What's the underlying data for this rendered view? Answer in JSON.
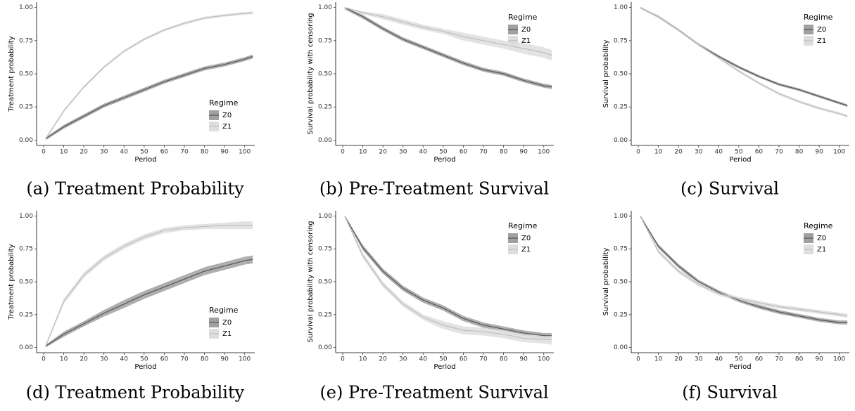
{
  "chart_data": [
    {
      "type": "line",
      "caption": "(a) Treatment Probability",
      "ylabel": "Treatment probability",
      "xlabel": "Period",
      "legend_title": "Regime",
      "legend": "right-bottom",
      "x": [
        1,
        10,
        20,
        30,
        40,
        50,
        60,
        70,
        80,
        90,
        100,
        104
      ],
      "xlim": [
        -3.5,
        105
      ],
      "ylim": [
        -0.04,
        1.04
      ],
      "xticks": [
        0,
        10,
        20,
        30,
        40,
        50,
        60,
        70,
        80,
        90,
        100
      ],
      "yticks": [
        {
          "value": 0,
          "label": "0.00"
        },
        {
          "value": 0.25,
          "label": "0.25"
        },
        {
          "value": 0.5,
          "label": "0.50"
        },
        {
          "value": 0.75,
          "label": "0.75"
        },
        {
          "value": 1,
          "label": "1.00"
        }
      ],
      "series": [
        {
          "name": "Z0",
          "color": "#555555",
          "band_color": "#a0a0a0",
          "values": [
            0.01,
            0.1,
            0.18,
            0.26,
            0.32,
            0.38,
            0.44,
            0.49,
            0.54,
            0.57,
            0.61,
            0.63
          ],
          "lower": [
            0.0,
            0.085,
            0.165,
            0.245,
            0.305,
            0.365,
            0.425,
            0.475,
            0.525,
            0.555,
            0.595,
            0.615
          ],
          "upper": [
            0.02,
            0.115,
            0.195,
            0.275,
            0.335,
            0.395,
            0.455,
            0.505,
            0.555,
            0.585,
            0.625,
            0.645
          ]
        },
        {
          "name": "Z1",
          "color": "#bdbdbd",
          "band_color": "#dedede",
          "values": [
            0.01,
            0.22,
            0.4,
            0.55,
            0.67,
            0.76,
            0.83,
            0.88,
            0.92,
            0.94,
            0.955,
            0.96
          ],
          "lower": [
            0.0,
            0.21,
            0.39,
            0.54,
            0.66,
            0.75,
            0.82,
            0.87,
            0.91,
            0.93,
            0.945,
            0.95
          ],
          "upper": [
            0.02,
            0.23,
            0.41,
            0.56,
            0.68,
            0.77,
            0.84,
            0.89,
            0.93,
            0.95,
            0.965,
            0.97
          ]
        }
      ]
    },
    {
      "type": "line",
      "caption": "(b) Pre-Treatment Survival",
      "ylabel": "Survival probability with censoring",
      "xlabel": "Period",
      "legend_title": "Regime",
      "legend": "right-top",
      "x": [
        1,
        10,
        20,
        30,
        40,
        50,
        60,
        70,
        80,
        90,
        100,
        104
      ],
      "xlim": [
        -3.5,
        105
      ],
      "ylim": [
        -0.04,
        1.04
      ],
      "xticks": [
        0,
        10,
        20,
        30,
        40,
        50,
        60,
        70,
        80,
        90,
        100
      ],
      "yticks": [
        {
          "value": 0,
          "label": "0.00"
        },
        {
          "value": 0.25,
          "label": "0.25"
        },
        {
          "value": 0.5,
          "label": "0.50"
        },
        {
          "value": 0.75,
          "label": "0.75"
        },
        {
          "value": 1,
          "label": "1.00"
        }
      ],
      "series": [
        {
          "name": "Z0",
          "color": "#555555",
          "band_color": "#a0a0a0",
          "values": [
            1,
            0.93,
            0.84,
            0.76,
            0.7,
            0.64,
            0.58,
            0.53,
            0.5,
            0.45,
            0.41,
            0.4
          ],
          "lower": [
            0.985,
            0.915,
            0.825,
            0.745,
            0.685,
            0.625,
            0.565,
            0.515,
            0.485,
            0.435,
            0.395,
            0.385
          ],
          "upper": [
            1,
            0.945,
            0.855,
            0.775,
            0.715,
            0.655,
            0.595,
            0.545,
            0.515,
            0.465,
            0.425,
            0.415
          ]
        },
        {
          "name": "Z1",
          "color": "#bdbdbd",
          "band_color": "#dedede",
          "values": [
            1,
            0.96,
            0.93,
            0.89,
            0.85,
            0.82,
            0.78,
            0.75,
            0.72,
            0.69,
            0.66,
            0.64
          ],
          "lower": [
            0.99,
            0.95,
            0.91,
            0.87,
            0.83,
            0.8,
            0.75,
            0.72,
            0.69,
            0.65,
            0.62,
            0.6
          ],
          "upper": [
            1,
            0.97,
            0.95,
            0.91,
            0.87,
            0.84,
            0.81,
            0.78,
            0.75,
            0.73,
            0.7,
            0.68
          ]
        }
      ]
    },
    {
      "type": "line",
      "caption": "(c) Survival",
      "ylabel": "Survival probability",
      "xlabel": "Period",
      "legend_title": "Regime",
      "legend": "right-top",
      "x": [
        1,
        10,
        20,
        30,
        40,
        50,
        60,
        70,
        80,
        90,
        100,
        104
      ],
      "xlim": [
        -3.5,
        105
      ],
      "ylim": [
        -0.04,
        1.04
      ],
      "xticks": [
        0,
        10,
        20,
        30,
        40,
        50,
        60,
        70,
        80,
        90,
        100
      ],
      "yticks": [
        {
          "value": 0,
          "label": "0.00"
        },
        {
          "value": 0.25,
          "label": "0.25"
        },
        {
          "value": 0.5,
          "label": "0.50"
        },
        {
          "value": 0.75,
          "label": "0.75"
        },
        {
          "value": 1,
          "label": "1.00"
        }
      ],
      "series": [
        {
          "name": "Z0",
          "color": "#555555",
          "band_color": "#a0a0a0",
          "values": [
            1,
            0.93,
            0.83,
            0.72,
            0.63,
            0.55,
            0.48,
            0.42,
            0.38,
            0.33,
            0.28,
            0.26
          ],
          "lower": [
            0.99,
            0.92,
            0.82,
            0.71,
            0.62,
            0.54,
            0.47,
            0.41,
            0.37,
            0.32,
            0.27,
            0.25
          ],
          "upper": [
            1,
            0.94,
            0.84,
            0.73,
            0.64,
            0.56,
            0.49,
            0.43,
            0.39,
            0.34,
            0.29,
            0.27
          ]
        },
        {
          "name": "Z1",
          "color": "#bdbdbd",
          "band_color": "#dedede",
          "values": [
            1,
            0.93,
            0.83,
            0.72,
            0.62,
            0.52,
            0.43,
            0.35,
            0.29,
            0.24,
            0.2,
            0.18
          ],
          "lower": [
            0.99,
            0.92,
            0.82,
            0.71,
            0.61,
            0.51,
            0.42,
            0.34,
            0.28,
            0.23,
            0.19,
            0.17
          ],
          "upper": [
            1,
            0.94,
            0.84,
            0.73,
            0.63,
            0.53,
            0.44,
            0.36,
            0.3,
            0.25,
            0.21,
            0.19
          ]
        }
      ]
    },
    {
      "type": "line",
      "caption": "(d) Treatment Probability",
      "ylabel": "Treatment probability",
      "xlabel": "Period",
      "legend_title": "Regime",
      "legend": "right-bottom",
      "x": [
        1,
        10,
        20,
        30,
        40,
        50,
        60,
        70,
        80,
        90,
        100,
        104
      ],
      "xlim": [
        -3.5,
        105
      ],
      "ylim": [
        -0.04,
        1.04
      ],
      "xticks": [
        0,
        10,
        20,
        30,
        40,
        50,
        60,
        70,
        80,
        90,
        100
      ],
      "yticks": [
        {
          "value": 0,
          "label": "0.00"
        },
        {
          "value": 0.25,
          "label": "0.25"
        },
        {
          "value": 0.5,
          "label": "0.50"
        },
        {
          "value": 0.75,
          "label": "0.75"
        },
        {
          "value": 1,
          "label": "1.00"
        }
      ],
      "series": [
        {
          "name": "Z0",
          "color": "#555555",
          "band_color": "#a0a0a0",
          "values": [
            0.01,
            0.1,
            0.18,
            0.26,
            0.33,
            0.4,
            0.46,
            0.52,
            0.58,
            0.62,
            0.66,
            0.67
          ],
          "lower": [
            0,
            0.08,
            0.16,
            0.235,
            0.3,
            0.37,
            0.43,
            0.49,
            0.55,
            0.59,
            0.63,
            0.64
          ],
          "upper": [
            0.02,
            0.12,
            0.2,
            0.285,
            0.36,
            0.43,
            0.49,
            0.55,
            0.61,
            0.65,
            0.69,
            0.7
          ]
        },
        {
          "name": "Z1",
          "color": "#bdbdbd",
          "band_color": "#dedede",
          "values": [
            0.01,
            0.35,
            0.55,
            0.68,
            0.77,
            0.84,
            0.89,
            0.91,
            0.92,
            0.93,
            0.93,
            0.93
          ],
          "lower": [
            0,
            0.33,
            0.53,
            0.66,
            0.75,
            0.82,
            0.87,
            0.89,
            0.9,
            0.9,
            0.9,
            0.9
          ],
          "upper": [
            0.02,
            0.37,
            0.57,
            0.7,
            0.79,
            0.86,
            0.91,
            0.93,
            0.94,
            0.95,
            0.96,
            0.96
          ]
        }
      ]
    },
    {
      "type": "line",
      "caption": "(e) Pre-Treatment Survival",
      "ylabel": "Survival probability with censoring",
      "xlabel": "Period",
      "legend_title": "Regime",
      "legend": "right-top",
      "x": [
        1,
        10,
        20,
        30,
        40,
        50,
        60,
        70,
        80,
        90,
        100,
        104
      ],
      "xlim": [
        -3.5,
        105
      ],
      "ylim": [
        -0.04,
        1.04
      ],
      "xticks": [
        0,
        10,
        20,
        30,
        40,
        50,
        60,
        70,
        80,
        90,
        100
      ],
      "yticks": [
        {
          "value": 0,
          "label": "0.00"
        },
        {
          "value": 0.25,
          "label": "0.25"
        },
        {
          "value": 0.5,
          "label": "0.50"
        },
        {
          "value": 0.75,
          "label": "0.75"
        },
        {
          "value": 1,
          "label": "1.00"
        }
      ],
      "series": [
        {
          "name": "Z0",
          "color": "#555555",
          "band_color": "#a0a0a0",
          "values": [
            1,
            0.76,
            0.58,
            0.45,
            0.36,
            0.3,
            0.22,
            0.17,
            0.14,
            0.11,
            0.09,
            0.09
          ],
          "lower": [
            0.99,
            0.74,
            0.56,
            0.43,
            0.34,
            0.28,
            0.2,
            0.15,
            0.12,
            0.09,
            0.07,
            0.07
          ],
          "upper": [
            1,
            0.78,
            0.6,
            0.47,
            0.38,
            0.32,
            0.24,
            0.19,
            0.16,
            0.13,
            0.11,
            0.11
          ]
        },
        {
          "name": "Z1",
          "color": "#bdbdbd",
          "band_color": "#dedede",
          "values": [
            1,
            0.7,
            0.48,
            0.33,
            0.23,
            0.17,
            0.13,
            0.12,
            0.1,
            0.07,
            0.06,
            0.06
          ],
          "lower": [
            0.99,
            0.68,
            0.46,
            0.31,
            0.21,
            0.14,
            0.1,
            0.09,
            0.07,
            0.04,
            0.03,
            0.02
          ],
          "upper": [
            1,
            0.72,
            0.5,
            0.35,
            0.25,
            0.2,
            0.16,
            0.15,
            0.13,
            0.1,
            0.09,
            0.1
          ]
        }
      ]
    },
    {
      "type": "line",
      "caption": "(f) Survival",
      "ylabel": "Survival probability",
      "xlabel": "Period",
      "legend_title": "Regime",
      "legend": "right-top",
      "x": [
        1,
        10,
        20,
        30,
        40,
        50,
        60,
        70,
        80,
        90,
        100,
        104
      ],
      "xlim": [
        -3.5,
        105
      ],
      "ylim": [
        -0.04,
        1.04
      ],
      "xticks": [
        0,
        10,
        20,
        30,
        40,
        50,
        60,
        70,
        80,
        90,
        100
      ],
      "yticks": [
        {
          "value": 0,
          "label": "0.00"
        },
        {
          "value": 0.25,
          "label": "0.25"
        },
        {
          "value": 0.5,
          "label": "0.50"
        },
        {
          "value": 0.75,
          "label": "0.75"
        },
        {
          "value": 1,
          "label": "1.00"
        }
      ],
      "series": [
        {
          "name": "Z0",
          "color": "#555555",
          "band_color": "#a0a0a0",
          "values": [
            1,
            0.77,
            0.62,
            0.5,
            0.42,
            0.36,
            0.31,
            0.27,
            0.24,
            0.21,
            0.19,
            0.19
          ],
          "lower": [
            0.99,
            0.755,
            0.605,
            0.485,
            0.405,
            0.345,
            0.295,
            0.255,
            0.225,
            0.195,
            0.175,
            0.175
          ],
          "upper": [
            1,
            0.785,
            0.635,
            0.515,
            0.435,
            0.375,
            0.325,
            0.285,
            0.255,
            0.225,
            0.205,
            0.205
          ]
        },
        {
          "name": "Z1",
          "color": "#bdbdbd",
          "band_color": "#dedede",
          "values": [
            1,
            0.73,
            0.58,
            0.48,
            0.41,
            0.37,
            0.34,
            0.31,
            0.29,
            0.27,
            0.25,
            0.24
          ],
          "lower": [
            0.99,
            0.715,
            0.565,
            0.465,
            0.395,
            0.355,
            0.325,
            0.295,
            0.275,
            0.255,
            0.235,
            0.225
          ],
          "upper": [
            1,
            0.745,
            0.595,
            0.495,
            0.425,
            0.385,
            0.355,
            0.325,
            0.305,
            0.285,
            0.265,
            0.255
          ]
        }
      ]
    }
  ]
}
